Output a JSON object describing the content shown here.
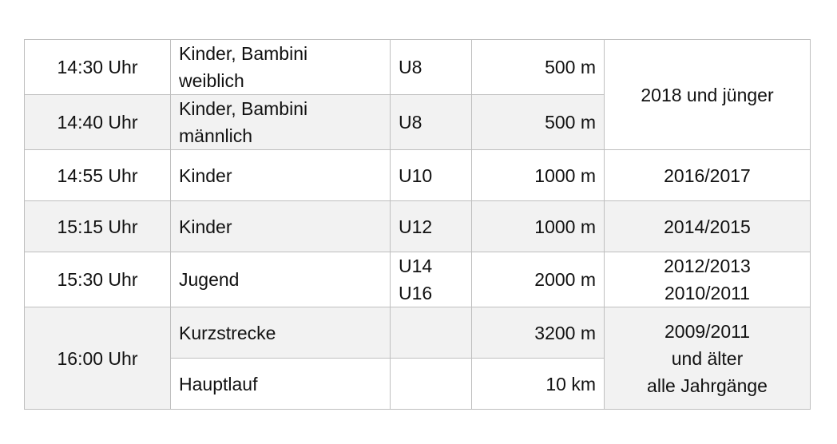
{
  "rows": [
    {
      "time": "14:30 Uhr",
      "category": [
        "Kinder, Bambini",
        "weiblich"
      ],
      "class": [
        "U8"
      ],
      "distance": "500 m"
    },
    {
      "time": "14:40 Uhr",
      "category": [
        "Kinder, Bambini",
        "männlich"
      ],
      "class": [
        "U8"
      ],
      "distance": "500 m"
    },
    {
      "time": "14:55 Uhr",
      "category": [
        "Kinder"
      ],
      "class": [
        "U10"
      ],
      "distance": "1000 m",
      "years": [
        "2016/2017"
      ]
    },
    {
      "time": "15:15 Uhr",
      "category": [
        "Kinder"
      ],
      "class": [
        "U12"
      ],
      "distance": "1000 m",
      "years": [
        "2014/2015"
      ]
    },
    {
      "time": "15:30 Uhr",
      "category": [
        "Jugend"
      ],
      "class": [
        "U14",
        "U16"
      ],
      "distance": "2000 m",
      "years": [
        "2012/2013",
        "2010/2011"
      ]
    },
    {
      "time": "16:00 Uhr",
      "category": [
        "Kurzstrecke"
      ],
      "class": [
        ""
      ],
      "distance": "3200 m"
    },
    {
      "category": [
        "Hauptlauf"
      ],
      "class": [
        ""
      ],
      "distance": "10 km"
    }
  ],
  "merged_years": {
    "u8": "2018 und jünger",
    "final": [
      "2009/2011",
      "und älter",
      "alle Jahrgänge"
    ]
  },
  "colors": {
    "stripe": "#f2f2f2",
    "border": "#bfbfbf"
  }
}
